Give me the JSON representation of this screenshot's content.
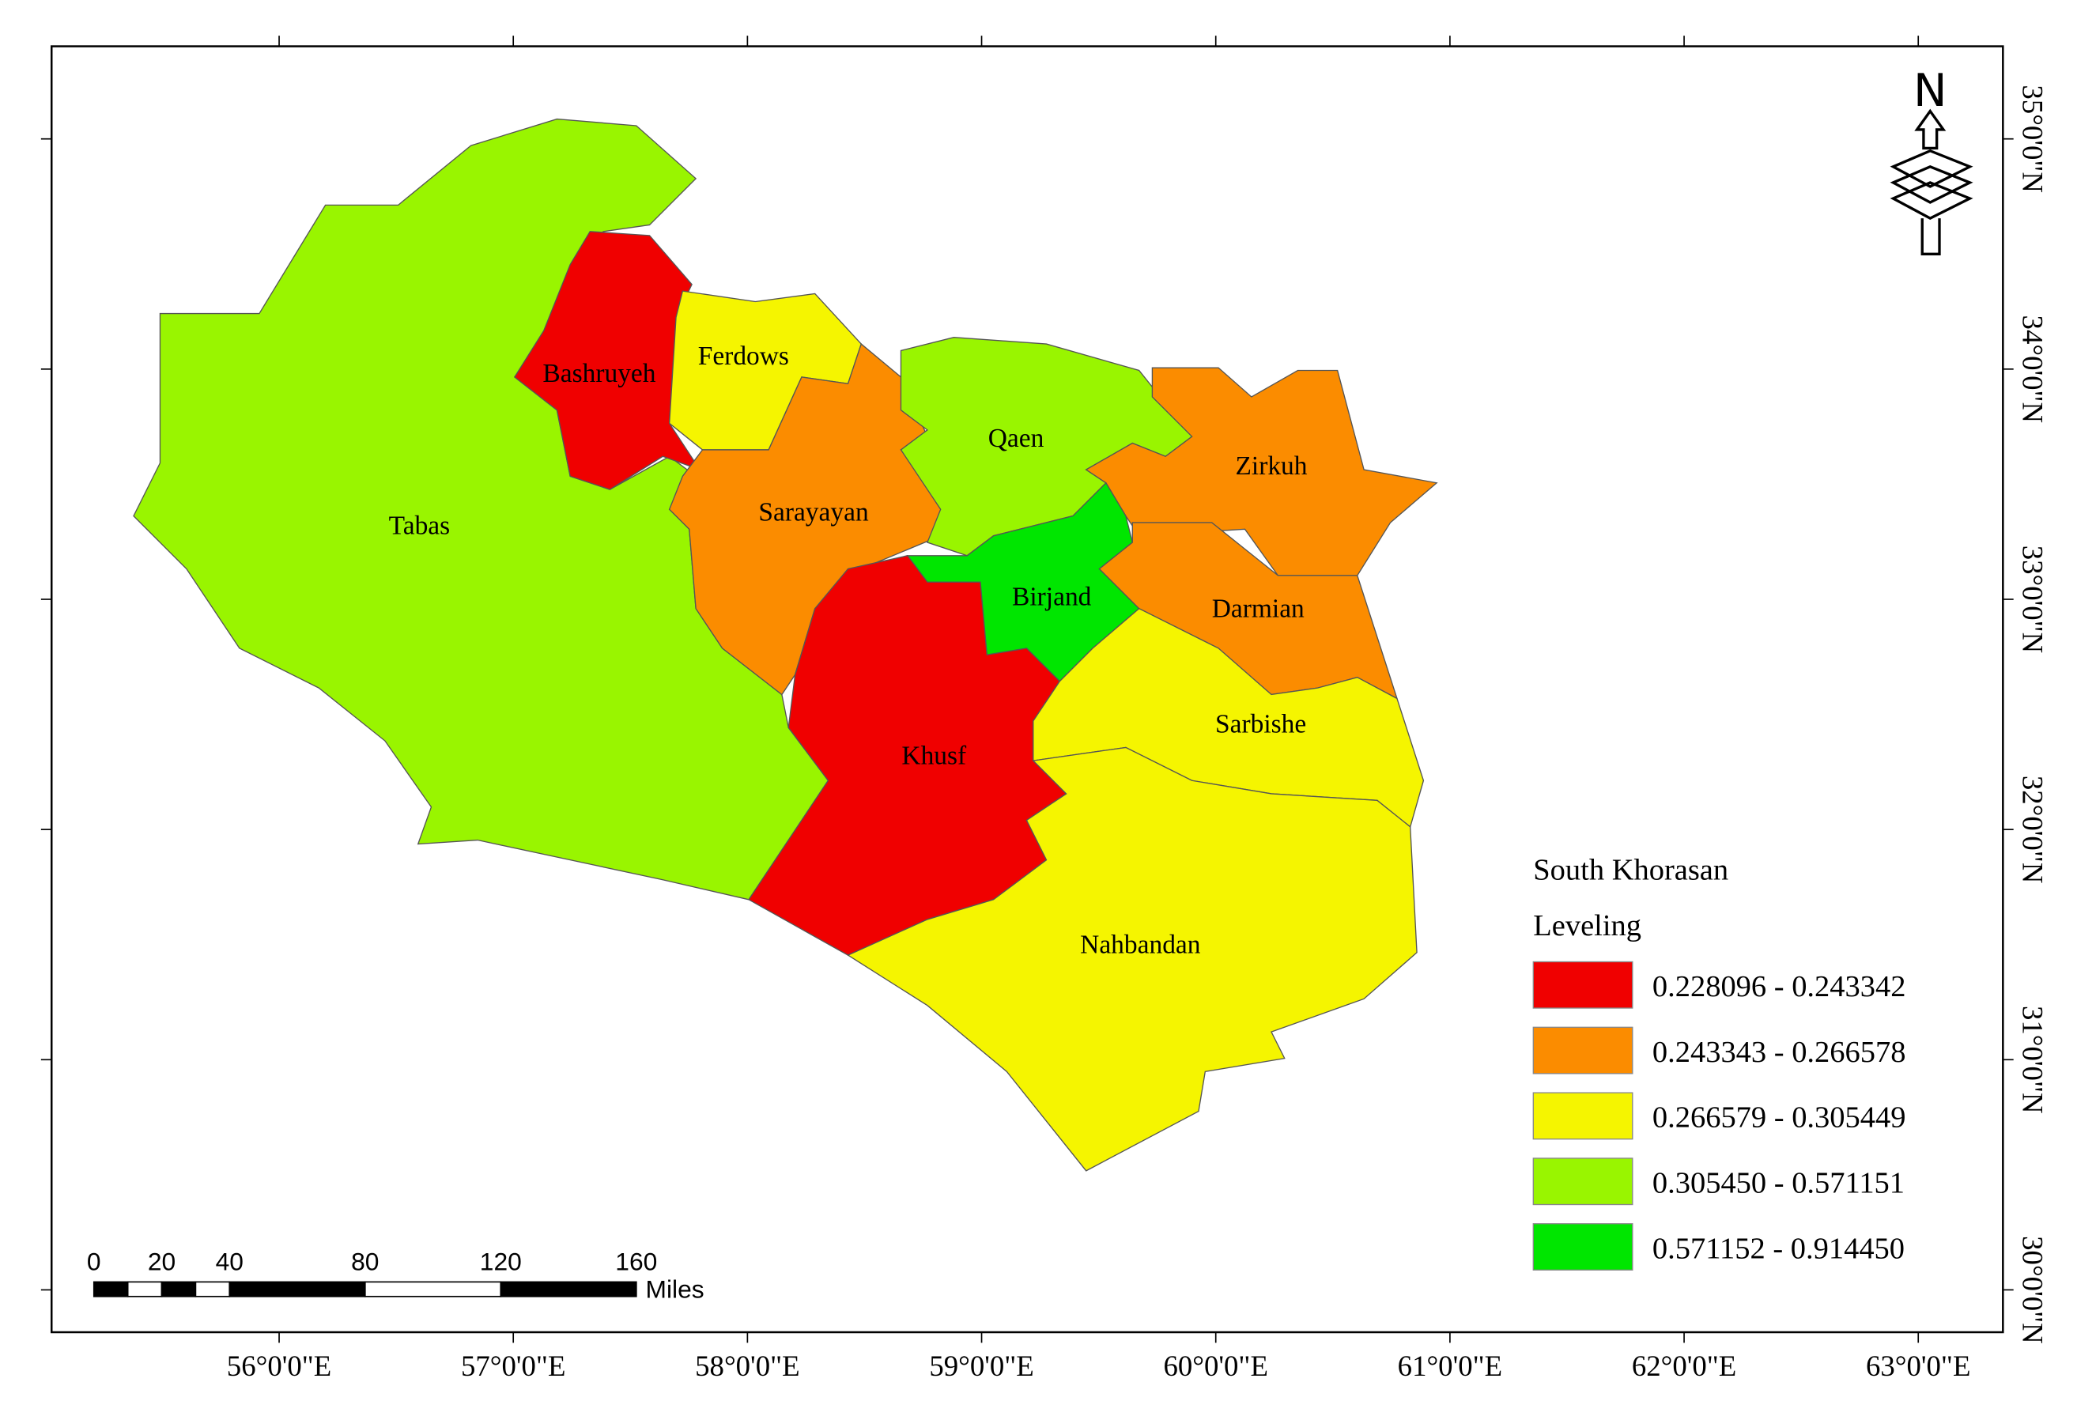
{
  "districts": [
    {
      "name": "Tabas",
      "color": "#99f500"
    },
    {
      "name": "Bashruyeh",
      "color": "#f00000"
    },
    {
      "name": "Ferdows",
      "color": "#f5f500"
    },
    {
      "name": "Sarayayan",
      "color": "#fb8c00"
    },
    {
      "name": "Qaen",
      "color": "#99f500"
    },
    {
      "name": "Zirkuh",
      "color": "#fb8c00"
    },
    {
      "name": "Birjand",
      "color": "#00e600"
    },
    {
      "name": "Darmian",
      "color": "#fb8c00"
    },
    {
      "name": "Khusf",
      "color": "#f00000"
    },
    {
      "name": "Sarbishe",
      "color": "#f5f500"
    },
    {
      "name": "Nahbandan",
      "color": "#f5f500"
    }
  ],
  "legend": {
    "title": "South Khorasan",
    "subtitle": "Leveling",
    "items": [
      {
        "label": "0.228096 - 0.243342",
        "color": "#f00000"
      },
      {
        "label": "0.243343 - 0.266578",
        "color": "#fb8c00"
      },
      {
        "label": "0.266579 - 0.305449",
        "color": "#f5f500"
      },
      {
        "label": "0.305450 - 0.571151",
        "color": "#99f500"
      },
      {
        "label": "0.571152 - 0.914450",
        "color": "#00e600"
      }
    ]
  },
  "x_axis": {
    "labels": [
      "56°0'0\"E",
      "57°0'0\"E",
      "58°0'0\"E",
      "59°0'0\"E",
      "60°0'0\"E",
      "61°0'0\"E",
      "62°0'0\"E",
      "63°0'0\"E"
    ]
  },
  "y_axis": {
    "labels": [
      "35°0'0\"N",
      "34°0'0\"N",
      "33°0'0\"N",
      "32°0'0\"N",
      "31°0'0\"N",
      "30°0'0\"N"
    ]
  },
  "scale_bar": {
    "labels": [
      "0",
      "20",
      "40",
      "80",
      "120",
      "160"
    ],
    "unit": "Miles"
  },
  "north_arrow": {
    "label": "N"
  }
}
